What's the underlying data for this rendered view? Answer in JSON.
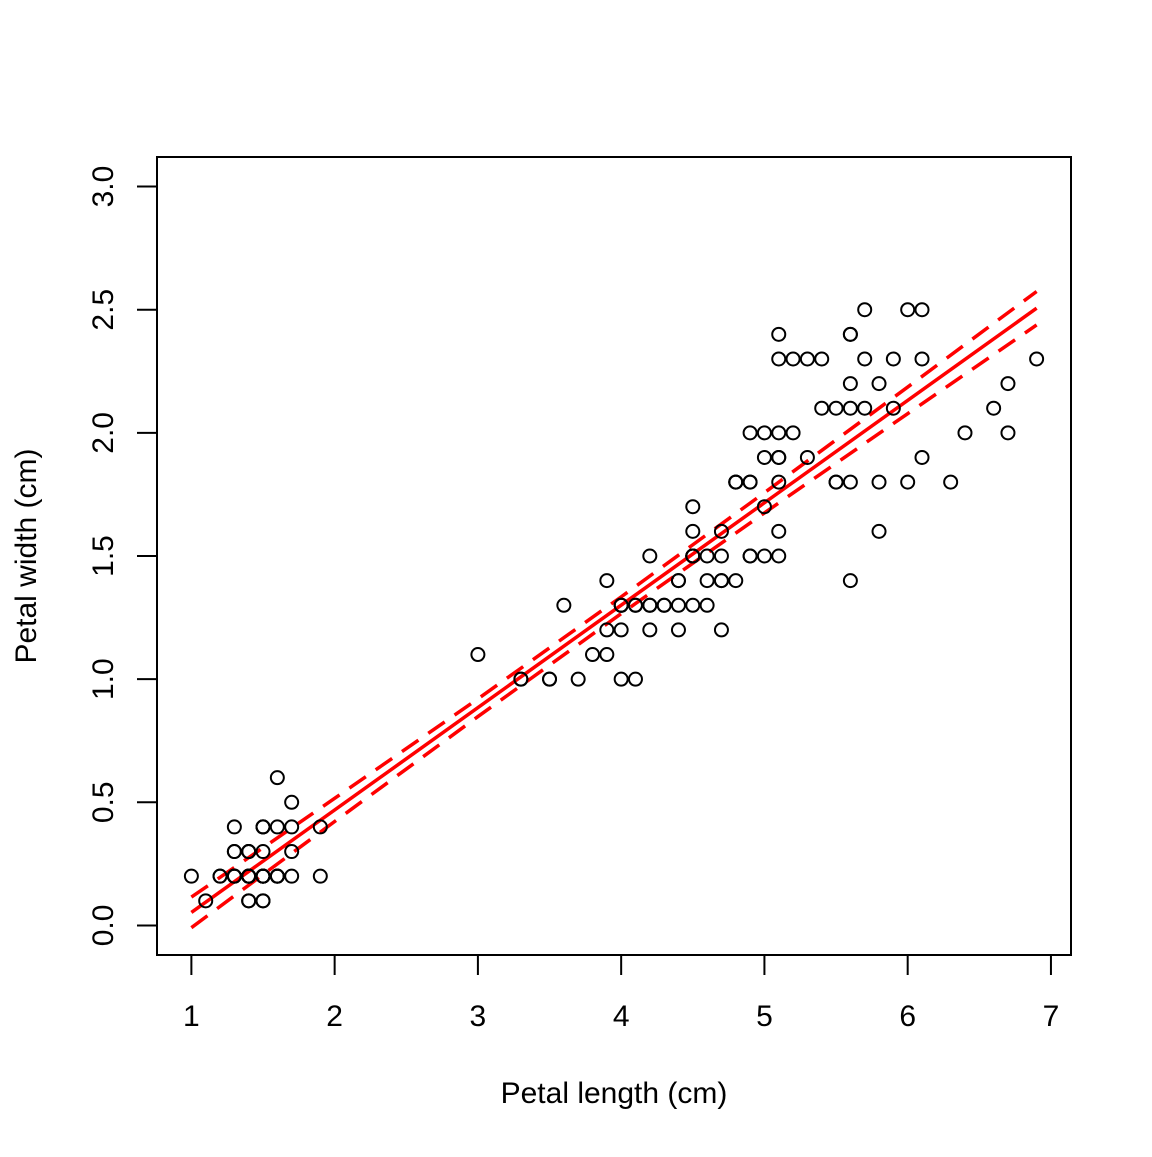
{
  "chart_data": {
    "type": "scatter",
    "title": "",
    "xlabel": "Petal length (cm)",
    "ylabel": "Petal width (cm)",
    "xlim": [
      0.76,
      7.14
    ],
    "ylim": [
      -0.12,
      3.12
    ],
    "grid": false,
    "x_ticks": [
      1,
      2,
      3,
      4,
      5,
      6,
      7
    ],
    "x_tick_labels": [
      "1",
      "2",
      "3",
      "4",
      "5",
      "6",
      "7"
    ],
    "y_ticks": [
      0,
      0.5,
      1,
      1.5,
      2,
      2.5,
      3
    ],
    "y_tick_labels": [
      "0.0",
      "0.5",
      "1.0",
      "1.5",
      "2.0",
      "2.5",
      "3.0"
    ],
    "colors": {
      "points": "#000000",
      "fit": "#ff0000",
      "band": "#ff0000"
    },
    "points": {
      "x": [
        1.4,
        1.4,
        1.3,
        1.5,
        1.4,
        1.7,
        1.4,
        1.5,
        1.4,
        1.5,
        1.5,
        1.6,
        1.4,
        1.1,
        1.2,
        1.5,
        1.3,
        1.4,
        1.7,
        1.5,
        1.7,
        1.5,
        1.0,
        1.7,
        1.9,
        1.6,
        1.6,
        1.5,
        1.4,
        1.6,
        1.6,
        1.5,
        1.5,
        1.4,
        1.5,
        1.2,
        1.3,
        1.4,
        1.3,
        1.5,
        1.3,
        1.3,
        1.3,
        1.6,
        1.9,
        1.4,
        1.6,
        1.4,
        1.5,
        1.4,
        4.7,
        4.5,
        4.9,
        4.0,
        4.6,
        4.5,
        4.7,
        3.3,
        4.6,
        3.9,
        3.5,
        4.2,
        4.0,
        4.7,
        3.6,
        4.4,
        4.5,
        4.1,
        4.5,
        3.9,
        4.8,
        4.0,
        4.9,
        4.7,
        4.3,
        4.4,
        4.8,
        5.0,
        4.5,
        3.5,
        3.8,
        3.7,
        3.9,
        5.1,
        4.5,
        4.5,
        4.7,
        4.4,
        4.1,
        4.0,
        4.4,
        4.6,
        4.0,
        3.3,
        4.2,
        4.2,
        4.2,
        4.3,
        3.0,
        4.1,
        6.0,
        5.1,
        5.9,
        5.6,
        5.8,
        6.6,
        4.5,
        6.3,
        5.8,
        6.1,
        5.1,
        5.3,
        5.5,
        5.0,
        5.1,
        5.3,
        5.5,
        6.7,
        6.9,
        5.0,
        5.7,
        4.9,
        6.7,
        4.9,
        5.7,
        6.0,
        4.8,
        4.9,
        5.6,
        5.8,
        6.1,
        6.4,
        5.6,
        5.1,
        5.6,
        6.1,
        5.6,
        5.5,
        4.8,
        5.4,
        5.6,
        5.1,
        5.1,
        5.9,
        5.7,
        5.2,
        5.0,
        5.2,
        5.4,
        5.1
      ],
      "y": [
        0.2,
        0.2,
        0.2,
        0.2,
        0.2,
        0.4,
        0.3,
        0.2,
        0.2,
        0.1,
        0.2,
        0.2,
        0.1,
        0.1,
        0.2,
        0.4,
        0.4,
        0.3,
        0.3,
        0.3,
        0.2,
        0.4,
        0.2,
        0.5,
        0.2,
        0.2,
        0.4,
        0.2,
        0.2,
        0.2,
        0.2,
        0.4,
        0.1,
        0.2,
        0.2,
        0.2,
        0.2,
        0.1,
        0.2,
        0.2,
        0.3,
        0.3,
        0.2,
        0.6,
        0.4,
        0.3,
        0.2,
        0.2,
        0.2,
        0.2,
        1.4,
        1.5,
        1.5,
        1.3,
        1.5,
        1.3,
        1.6,
        1.0,
        1.3,
        1.4,
        1.0,
        1.5,
        1.0,
        1.4,
        1.3,
        1.4,
        1.5,
        1.0,
        1.5,
        1.1,
        1.8,
        1.3,
        1.5,
        1.2,
        1.3,
        1.4,
        1.4,
        1.7,
        1.5,
        1.0,
        1.1,
        1.0,
        1.2,
        1.6,
        1.5,
        1.6,
        1.5,
        1.3,
        1.3,
        1.3,
        1.2,
        1.4,
        1.2,
        1.0,
        1.3,
        1.2,
        1.3,
        1.3,
        1.1,
        1.3,
        2.5,
        1.9,
        2.1,
        1.8,
        2.2,
        2.1,
        1.7,
        1.8,
        1.8,
        2.5,
        2.0,
        1.9,
        2.1,
        2.0,
        2.4,
        2.3,
        1.8,
        2.2,
        2.3,
        1.5,
        2.3,
        2.0,
        2.0,
        1.8,
        2.1,
        1.8,
        1.8,
        1.8,
        2.1,
        1.6,
        1.9,
        2.0,
        2.2,
        1.5,
        1.4,
        2.3,
        2.4,
        1.8,
        1.8,
        2.1,
        2.4,
        2.3,
        1.9,
        2.3,
        2.5,
        2.3,
        1.9,
        2.0,
        2.3,
        1.8
      ]
    },
    "fit_line": {
      "x": [
        1.0,
        6.9
      ],
      "y": [
        0.053,
        2.506
      ]
    },
    "confidence_band": {
      "x": [
        1.0,
        2.0,
        3.0,
        4.0,
        5.0,
        6.0,
        6.9
      ],
      "lower": [
        -0.009,
        0.422,
        0.848,
        1.266,
        1.675,
        2.078,
        2.438
      ],
      "upper": [
        0.115,
        0.516,
        0.92,
        1.334,
        1.757,
        2.186,
        2.574
      ]
    }
  }
}
